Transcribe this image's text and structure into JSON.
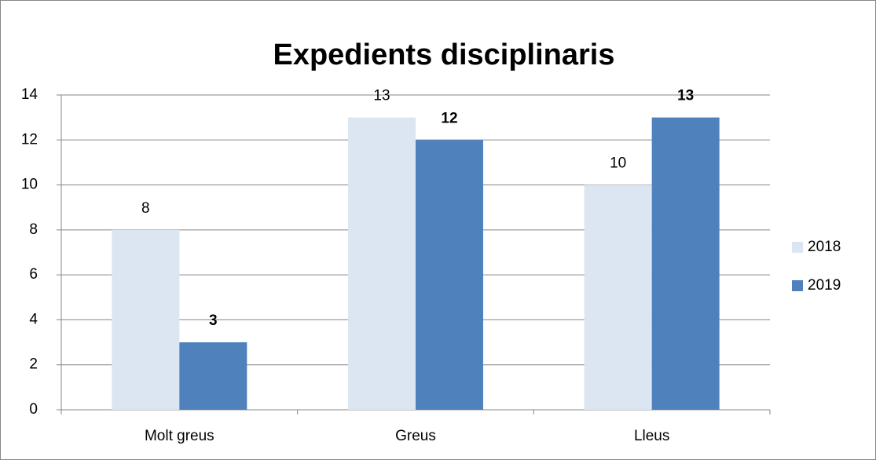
{
  "chart_data": {
    "type": "bar",
    "title": "Expedients disciplinaris",
    "categories": [
      "Molt greus",
      "Greus",
      "Lleus"
    ],
    "series": [
      {
        "name": "2018",
        "color": "#dce6f2",
        "values": [
          8,
          13,
          10
        ]
      },
      {
        "name": "2019",
        "color": "#4f81bd",
        "values": [
          3,
          12,
          13
        ]
      }
    ],
    "ylim": [
      0,
      14
    ],
    "yticks": [
      0,
      2,
      4,
      6,
      8,
      10,
      12,
      14
    ],
    "grid": true,
    "legend": "right"
  }
}
